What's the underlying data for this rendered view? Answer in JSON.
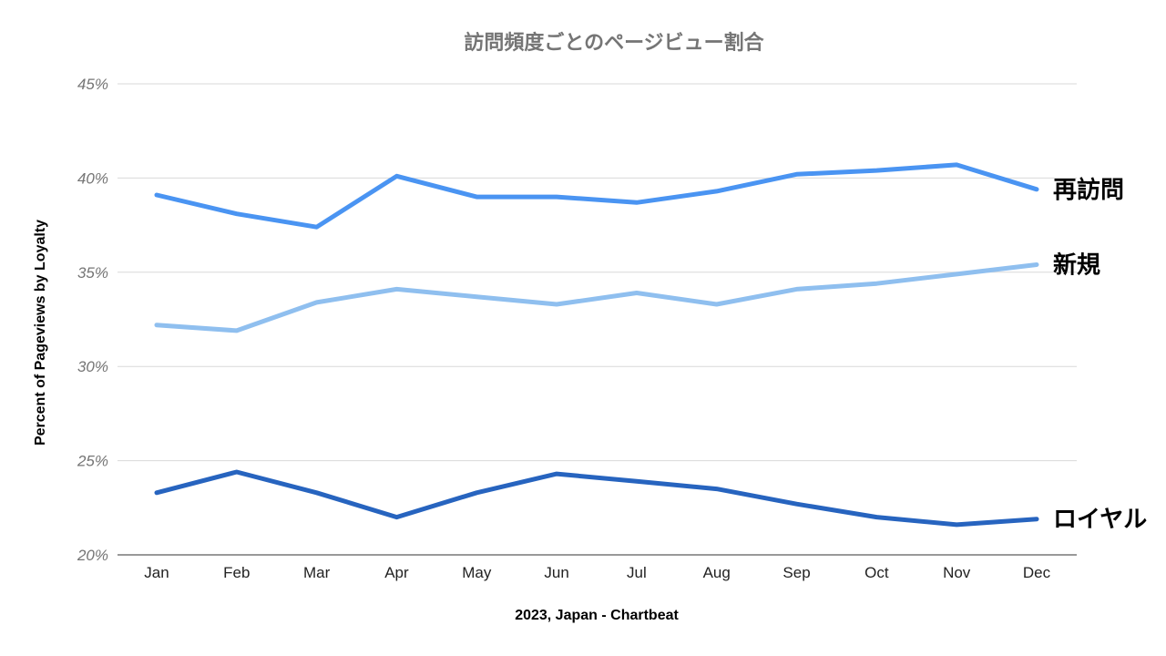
{
  "chart_data": {
    "type": "line",
    "title": "訪問頻度ごとのページビュー割合",
    "xlabel": "2023, Japan - Chartbeat",
    "ylabel": "Percent of Pageviews by Loyalty",
    "categories": [
      "Jan",
      "Feb",
      "Mar",
      "Apr",
      "May",
      "Jun",
      "Jul",
      "Aug",
      "Sep",
      "Oct",
      "Nov",
      "Dec"
    ],
    "ylim": [
      20,
      45
    ],
    "yticks": [
      20,
      25,
      30,
      35,
      40,
      45
    ],
    "ytick_labels": [
      "20%",
      "25%",
      "30%",
      "35%",
      "40%",
      "45%"
    ],
    "grid": true,
    "legend": "inline labels at right end of each line",
    "series": [
      {
        "name": "再訪問",
        "color": "#4a94f2",
        "values": [
          39.1,
          38.1,
          37.4,
          40.1,
          39.0,
          39.0,
          38.7,
          39.3,
          40.2,
          40.4,
          40.7,
          39.4
        ]
      },
      {
        "name": "新規",
        "color": "#8fbfef",
        "values": [
          32.2,
          31.9,
          33.4,
          34.1,
          33.7,
          33.3,
          33.9,
          33.3,
          34.1,
          34.4,
          34.9,
          35.4
        ]
      },
      {
        "name": "ロイヤル",
        "color": "#2764bf",
        "values": [
          23.3,
          24.4,
          23.3,
          22.0,
          23.3,
          24.3,
          23.9,
          23.5,
          22.7,
          22.0,
          21.6,
          21.9
        ]
      }
    ]
  }
}
